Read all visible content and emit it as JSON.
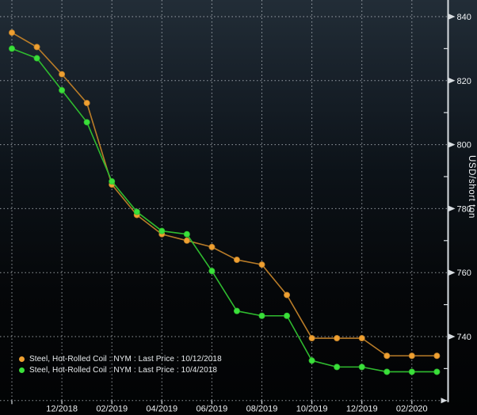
{
  "colors": {
    "background_top": "#222d37",
    "background_bottom": "#020304",
    "grid_dots": "#ccd3d9",
    "axis_line": "#d8dde1",
    "tick_text": "#eef1f3",
    "legend_text": "#e9ecee",
    "orange_line": "#b97c28",
    "orange_dot": "#efa031",
    "green_line": "#2fbb2f",
    "green_dot": "#3ae03a"
  },
  "chart_data": {
    "type": "line",
    "title": "",
    "xlabel": "",
    "ylabel": "USD/short ton",
    "grid": "dotted",
    "legend_position": "bottom-left",
    "ylim": [
      720,
      845
    ],
    "y_ticks": [
      840,
      820,
      800,
      780,
      760,
      740
    ],
    "y_minor_ticks": [
      830,
      810,
      790,
      770,
      750,
      730
    ],
    "categories": [
      "10/2018",
      "11/2018",
      "12/2018",
      "01/2019",
      "02/2019",
      "03/2019",
      "04/2019",
      "05/2019",
      "06/2019",
      "07/2019",
      "08/2019",
      "09/2019",
      "10/2019",
      "11/2019",
      "12/2019",
      "01/2020",
      "02/2020",
      "03/2020"
    ],
    "x_tick_labels": [
      "12/2018",
      "02/2019",
      "04/2019",
      "06/2019",
      "08/2019",
      "10/2019",
      "12/2019",
      "02/2020"
    ],
    "series": [
      {
        "legend_label": "Steel, Hot-Rolled Coil : NYM : Last Price : 10/12/2018",
        "line_color": "#b97c28",
        "dot_color": "#efa031",
        "values": [
          835,
          830.5,
          822,
          813,
          787.5,
          778,
          772,
          770,
          768,
          764,
          762.5,
          753,
          739.5,
          739.5,
          739.5,
          734,
          734,
          734
        ]
      },
      {
        "legend_label": "Steel, Hot-Rolled Coil : NYM : Last Price : 10/4/2018",
        "line_color": "#2fbb2f",
        "dot_color": "#3ae03a",
        "values": [
          830,
          827,
          817,
          807,
          788.5,
          779,
          773,
          772,
          760.5,
          748,
          746.5,
          746.5,
          732.5,
          730.5,
          730.5,
          729,
          729,
          729
        ]
      }
    ]
  }
}
